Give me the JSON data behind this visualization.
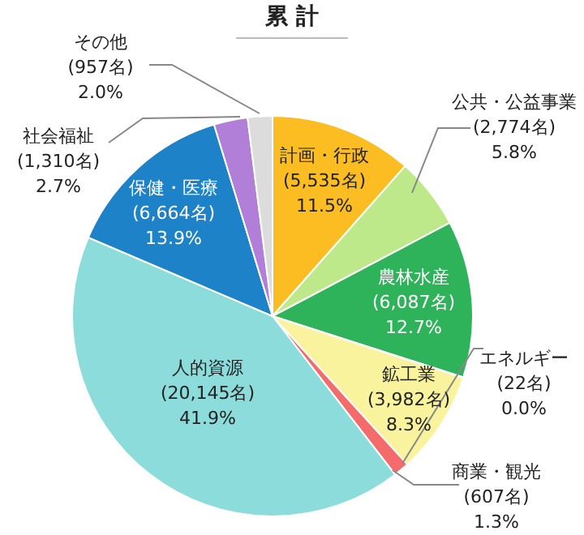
{
  "chart_data": {
    "type": "pie",
    "title": "累 計",
    "categories": [
      "計画・行政",
      "公共・公益事業",
      "農林水産",
      "エネルギー",
      "鉱工業",
      "商業・観光",
      "人的資源",
      "保健・医療",
      "社会福祉",
      "その他"
    ],
    "values": [
      5535,
      2774,
      6087,
      22,
      3982,
      607,
      20145,
      6664,
      1310,
      957
    ],
    "colors": [
      "#fcbd22",
      "#bde98a",
      "#2fb35a",
      "#f0a030",
      "#f8f39c",
      "#f46b6b",
      "#8cdcdc",
      "#1e82c8",
      "#b27fd8",
      "#dcdcdc"
    ],
    "value_labels": [
      "(5,535名)\n11.5%",
      "(2,774名)\n5.8%",
      "(6,087名)\n12.7%",
      "(22名)\n0.0%",
      "(3,982名)\n8.3%",
      "(607名)\n1.3%",
      "(20,145名)\n41.9%",
      "(6,664名)\n13.9%",
      "(1,310名)\n2.7%",
      "(957名)\n2.0%"
    ]
  }
}
